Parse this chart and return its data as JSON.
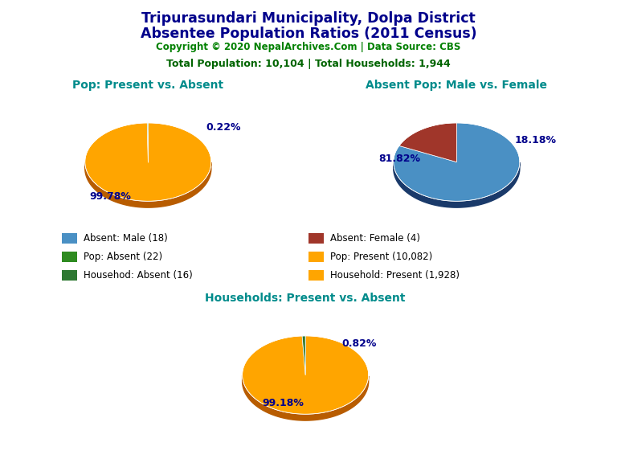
{
  "title_line1": "Tripurasundari Municipality, Dolpa District",
  "title_line2": "Absentee Population Ratios (2011 Census)",
  "copyright": "Copyright © 2020 NepalArchives.Com | Data Source: CBS",
  "stats": "Total Population: 10,104 | Total Households: 1,944",
  "pie1_title": "Pop: Present vs. Absent",
  "pie1_values": [
    10082,
    22
  ],
  "pie1_colors": [
    "#FFA500",
    "#2E8B20"
  ],
  "pie1_shadow_colors": [
    "#B85C00",
    "#1A5C1A"
  ],
  "pie1_labels": [
    "99.78%",
    "0.22%"
  ],
  "pie2_title": "Absent Pop: Male vs. Female",
  "pie2_values": [
    18,
    4
  ],
  "pie2_colors": [
    "#4A90C4",
    "#A0362A"
  ],
  "pie2_shadow_colors": [
    "#1A3A6A",
    "#6A1A0A"
  ],
  "pie2_labels": [
    "81.82%",
    "18.18%"
  ],
  "pie3_title": "Households: Present vs. Absent",
  "pie3_values": [
    1928,
    16
  ],
  "pie3_colors": [
    "#FFA500",
    "#2E7832"
  ],
  "pie3_shadow_colors": [
    "#B85C00",
    "#1A4A1A"
  ],
  "pie3_labels": [
    "99.18%",
    "0.82%"
  ],
  "legend_items": [
    {
      "label": "Absent: Male (18)",
      "color": "#4A90C4"
    },
    {
      "label": "Absent: Female (4)",
      "color": "#A0362A"
    },
    {
      "label": "Pop: Absent (22)",
      "color": "#2E8B20"
    },
    {
      "label": "Pop: Present (10,082)",
      "color": "#FFA500"
    },
    {
      "label": "Househod: Absent (16)",
      "color": "#2E7832"
    },
    {
      "label": "Household: Present (1,928)",
      "color": "#FFA500"
    }
  ],
  "title_color": "#00008B",
  "copyright_color": "#008000",
  "stats_color": "#006400",
  "subtitle_color": "#008B8B",
  "label_color": "#00008B",
  "bg_color": "#FFFFFF"
}
